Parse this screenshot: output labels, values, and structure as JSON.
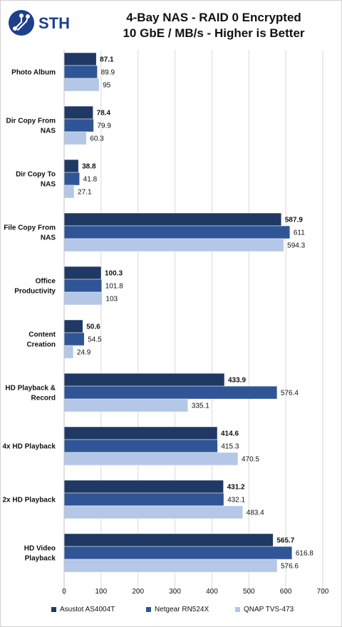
{
  "header": {
    "logo_text": "STH",
    "title_line1": "4-Bay NAS - RAID 0 Encrypted",
    "title_line2": "10 GbE / MB/s - Higher is Better"
  },
  "colors": {
    "series1": "#1f3864",
    "series2": "#2f5597",
    "series3": "#b4c7e7",
    "gridline": "#d9d9d9",
    "logo": "#1e3f8c"
  },
  "chart_data": {
    "type": "bar",
    "orientation": "horizontal",
    "title": "4-Bay NAS - RAID 0 Encrypted\n10 GbE / MB/s - Higher is Better",
    "categories": [
      "Photo Album",
      "Dir Copy From NAS",
      "Dir Copy To NAS",
      "File Copy From NAS",
      "Office Productivity",
      "Content Creation",
      "HD Playback & Record",
      "4x HD Playback",
      "2x HD Playback",
      "HD Video Playback"
    ],
    "category_lines": [
      [
        "Photo Album"
      ],
      [
        "Dir Copy From",
        "NAS"
      ],
      [
        "Dir Copy To",
        "NAS"
      ],
      [
        "File Copy From",
        "NAS"
      ],
      [
        "Office",
        "Productivity"
      ],
      [
        "Content",
        "Creation"
      ],
      [
        "HD Playback &",
        "Record"
      ],
      [
        "4x HD Playback"
      ],
      [
        "2x HD Playback"
      ],
      [
        "HD Video",
        "Playback"
      ]
    ],
    "series": [
      {
        "name": "Asustot AS4004T",
        "values": [
          87.1,
          78.4,
          38.8,
          587.9,
          100.3,
          50.6,
          433.9,
          414.6,
          431.2,
          565.7
        ]
      },
      {
        "name": "Netgear RN524X",
        "values": [
          89.9,
          79.9,
          41.8,
          611,
          101.8,
          54.5,
          576.4,
          415.3,
          432.1,
          616.8
        ]
      },
      {
        "name": "QNAP TVS-473",
        "values": [
          95,
          60.3,
          27.1,
          594.3,
          103,
          24.9,
          335.1,
          470.5,
          483.4,
          576.6
        ]
      }
    ],
    "value_labels": [
      [
        "87.1",
        "78.4",
        "38.8",
        "587.9",
        "100.3",
        "50.6",
        "433.9",
        "414.6",
        "431.2",
        "565.7"
      ],
      [
        "89.9",
        "79.9",
        "41.8",
        "611",
        "101.8",
        "54.5",
        "576.4",
        "415.3",
        "432.1",
        "616.8"
      ],
      [
        "95",
        "60.3",
        "27.1",
        "594.3",
        "103",
        "24.9",
        "335.1",
        "470.5",
        "483.4",
        "576.6"
      ]
    ],
    "xlim": [
      0,
      700
    ],
    "xticks": [
      0,
      100,
      200,
      300,
      400,
      500,
      600,
      700
    ],
    "grid": true,
    "legend_position": "bottom"
  }
}
